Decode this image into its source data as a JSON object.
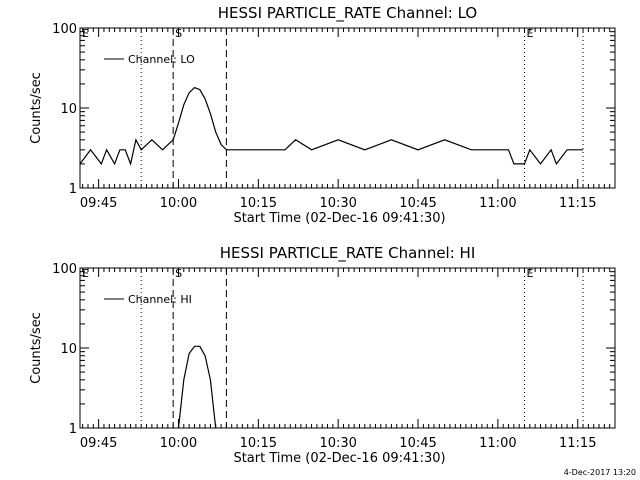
{
  "chart_data": [
    {
      "type": "line",
      "title": "HESSI PARTICLE_RATE Channel: LO",
      "xlabel": "Start Time (02-Dec-16 09:41:30)",
      "ylabel": "Counts/sec",
      "y_scale": "log",
      "ylim": [
        1,
        100
      ],
      "xlim": [
        "09:41:30",
        "11:22:00"
      ],
      "y_ticks": [
        "1",
        "10",
        "100"
      ],
      "x_ticks": [
        "09:45",
        "10:00",
        "10:15",
        "10:30",
        "10:45",
        "11:00",
        "11:15"
      ],
      "legend": {
        "position": "top-left",
        "entries": [
          "Channel: LO"
        ]
      },
      "grid": false,
      "markers": [
        {
          "label": "E",
          "time": "09:41:30",
          "style": "dotted"
        },
        {
          "label": "",
          "time": "09:53:00",
          "style": "dotted"
        },
        {
          "label": "S",
          "time": "09:59:00",
          "style": "dashed"
        },
        {
          "label": "",
          "time": "10:09:00",
          "style": "dashed"
        },
        {
          "label": "E",
          "time": "11:05:00",
          "style": "dotted"
        },
        {
          "label": "",
          "time": "11:16:00",
          "style": "dotted"
        }
      ],
      "series": [
        {
          "name": "Channel: LO",
          "x": [
            "09:41:30",
            "09:43:30",
            "09:45:30",
            "09:46:30",
            "09:48:00",
            "09:49:00",
            "09:50:00",
            "09:51:00",
            "09:52:00",
            "09:53:00",
            "09:55:00",
            "09:57:00",
            "09:59:00",
            "10:00:00",
            "10:01:00",
            "10:02:00",
            "10:03:00",
            "10:04:00",
            "10:05:00",
            "10:06:00",
            "10:07:00",
            "10:08:00",
            "10:09:00",
            "10:12:00",
            "10:15:00",
            "10:20:00",
            "10:22:00",
            "10:25:00",
            "10:30:00",
            "10:35:00",
            "10:40:00",
            "10:45:00",
            "10:50:00",
            "10:55:00",
            "11:00:00",
            "11:02:00",
            "11:03:00",
            "11:05:00",
            "11:06:00",
            "11:08:00",
            "11:10:00",
            "11:11:00",
            "11:13:00",
            "11:15:00",
            "11:16:00"
          ],
          "values": [
            2.0,
            3.0,
            2.0,
            3.0,
            2.0,
            3.0,
            3.0,
            2.0,
            4.0,
            3.0,
            4.0,
            3.0,
            4.0,
            6.5,
            11.0,
            15.5,
            18.0,
            17.0,
            13.0,
            8.5,
            5.0,
            3.5,
            3.0,
            3.0,
            3.0,
            3.0,
            4.0,
            3.0,
            4.0,
            3.0,
            4.0,
            3.0,
            4.0,
            3.0,
            3.0,
            3.0,
            2.0,
            2.0,
            3.0,
            2.0,
            3.0,
            2.0,
            3.0,
            3.0,
            3.0
          ]
        }
      ]
    },
    {
      "type": "line",
      "title": "HESSI PARTICLE_RATE Channel: HI",
      "xlabel": "Start Time (02-Dec-16 09:41:30)",
      "ylabel": "Counts/sec",
      "y_scale": "log",
      "ylim": [
        1,
        100
      ],
      "xlim": [
        "09:41:30",
        "11:22:00"
      ],
      "y_ticks": [
        "1",
        "10",
        "100"
      ],
      "x_ticks": [
        "09:45",
        "10:00",
        "10:15",
        "10:30",
        "10:45",
        "11:00",
        "11:15"
      ],
      "legend": {
        "position": "top-left",
        "entries": [
          "Channel: HI"
        ]
      },
      "grid": false,
      "markers": [
        {
          "label": "E",
          "time": "09:41:30",
          "style": "dotted"
        },
        {
          "label": "",
          "time": "09:53:00",
          "style": "dotted"
        },
        {
          "label": "S",
          "time": "09:59:00",
          "style": "dashed"
        },
        {
          "label": "",
          "time": "10:09:00",
          "style": "dashed"
        },
        {
          "label": "E",
          "time": "11:05:00",
          "style": "dotted"
        },
        {
          "label": "",
          "time": "11:16:00",
          "style": "dotted"
        }
      ],
      "series": [
        {
          "name": "Channel: HI",
          "x": [
            "10:00:00",
            "10:01:00",
            "10:02:00",
            "10:03:00",
            "10:04:00",
            "10:05:00",
            "10:06:00",
            "10:07:00"
          ],
          "values": [
            1.0,
            4.0,
            8.5,
            10.5,
            10.5,
            8.0,
            4.0,
            1.0
          ]
        }
      ]
    }
  ],
  "footer": {
    "timestamp": "4-Dec-2017 13:20"
  }
}
